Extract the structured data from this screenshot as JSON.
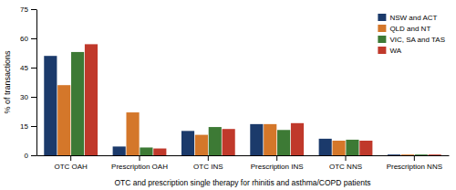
{
  "chart_data": {
    "type": "bar",
    "categories": [
      "OTC OAH",
      "Prescription OAH",
      "OTC INS",
      "Prescription INS",
      "OTC NNS",
      "Prescription NNS"
    ],
    "series": [
      {
        "name": "NSW and ACT",
        "color": "#1b3a6b",
        "values": [
          51.0,
          4.5,
          12.5,
          16.0,
          8.5,
          0.4
        ]
      },
      {
        "name": "QLD and NT",
        "color": "#d4772a",
        "values": [
          36.0,
          22.0,
          10.5,
          16.0,
          7.5,
          0.4
        ]
      },
      {
        "name": "VIC, SA and TAS",
        "color": "#3d7a35",
        "values": [
          53.0,
          4.0,
          14.5,
          13.0,
          8.0,
          0.4
        ]
      },
      {
        "name": "WA",
        "color": "#c0392b",
        "values": [
          57.0,
          3.5,
          13.5,
          16.5,
          7.5,
          0.4
        ]
      }
    ],
    "ylabel": "% of transactions",
    "xlabel": "OTC and prescription single therapy for rhinitis and asthma/COPD patients",
    "ylim": [
      0,
      75
    ],
    "yticks": [
      0,
      15,
      30,
      45,
      60,
      75
    ],
    "grid": false,
    "legend": "upper right"
  }
}
